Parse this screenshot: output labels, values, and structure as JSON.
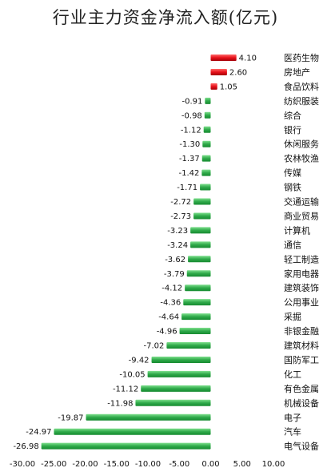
{
  "chart_data": {
    "type": "bar",
    "orientation": "horizontal",
    "title": "行业主力资金净流入额(亿元)",
    "xlabel": "",
    "ylabel": "",
    "xlim": [
      -30,
      10
    ],
    "x_ticks": [
      "-30.00",
      "-25.00",
      "-20.00",
      "-15.00",
      "-10.00",
      "-5.00",
      "0.00",
      "5.00",
      "10.00"
    ],
    "positive_color": "#e8111a",
    "negative_color": "#2faa4a",
    "grid": false,
    "legend": "none",
    "categories": [
      "医药生物",
      "房地产",
      "食品饮料",
      "纺织服装",
      "综合",
      "银行",
      "休闲服务",
      "农林牧渔",
      "传媒",
      "钢铁",
      "交通运输",
      "商业贸易",
      "计算机",
      "通信",
      "轻工制造",
      "家用电器",
      "建筑装饰",
      "公用事业",
      "采掘",
      "非银金融",
      "建筑材料",
      "国防军工",
      "化工",
      "有色金属",
      "机械设备",
      "电子",
      "汽车",
      "电气设备"
    ],
    "values": [
      4.1,
      2.6,
      1.05,
      -0.91,
      -0.98,
      -1.12,
      -1.3,
      -1.37,
      -1.42,
      -1.71,
      -2.72,
      -2.73,
      -3.23,
      -3.24,
      -3.62,
      -3.79,
      -4.12,
      -4.36,
      -4.64,
      -4.96,
      -7.02,
      -9.42,
      -10.05,
      -11.12,
      -11.98,
      -19.87,
      -24.97,
      -26.98
    ],
    "value_labels": [
      "4.10",
      "2.60",
      "1.05",
      "-0.91",
      "-0.98",
      "-1.12",
      "-1.30",
      "-1.37",
      "-1.42",
      "-1.71",
      "-2.72",
      "-2.73",
      "-3.23",
      "-3.24",
      "-3.62",
      "-3.79",
      "-4.12",
      "-4.36",
      "-4.64",
      "-4.96",
      "-7.02",
      "-9.42",
      "-10.05",
      "-11.12",
      "-11.98",
      "-19.87",
      "-24.97",
      "-26.98"
    ]
  }
}
